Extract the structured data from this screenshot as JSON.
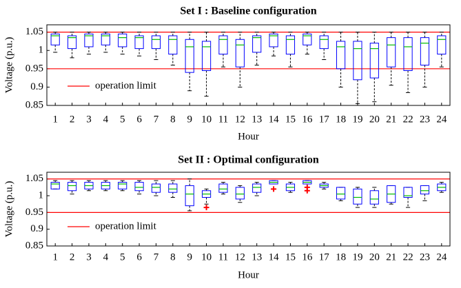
{
  "chart_data": [
    {
      "type": "box",
      "title": "Set I : Baseline configuration",
      "xlabel": "Hour",
      "ylabel": "Voltage (p.u.)",
      "categories": [
        "1",
        "2",
        "3",
        "4",
        "5",
        "6",
        "7",
        "8",
        "9",
        "10",
        "11",
        "12",
        "13",
        "14",
        "15",
        "16",
        "17",
        "18",
        "19",
        "20",
        "21",
        "22",
        "23",
        "24"
      ],
      "boxes": [
        {
          "whisker_low": 0.995,
          "q1": 1.015,
          "median": 1.04,
          "q3": 1.045,
          "whisker_high": 1.05
        },
        {
          "whisker_low": 0.98,
          "q1": 1.005,
          "median": 1.035,
          "q3": 1.04,
          "whisker_high": 1.05
        },
        {
          "whisker_low": 0.99,
          "q1": 1.01,
          "median": 1.04,
          "q3": 1.045,
          "whisker_high": 1.05
        },
        {
          "whisker_low": 0.995,
          "q1": 1.015,
          "median": 1.04,
          "q3": 1.045,
          "whisker_high": 1.05
        },
        {
          "whisker_low": 0.99,
          "q1": 1.01,
          "median": 1.035,
          "q3": 1.045,
          "whisker_high": 1.05
        },
        {
          "whisker_low": 0.985,
          "q1": 1.005,
          "median": 1.035,
          "q3": 1.04,
          "whisker_high": 1.05
        },
        {
          "whisker_low": 0.975,
          "q1": 1.005,
          "median": 1.03,
          "q3": 1.04,
          "whisker_high": 1.05
        },
        {
          "whisker_low": 0.96,
          "q1": 0.99,
          "median": 1.03,
          "q3": 1.04,
          "whisker_high": 1.05
        },
        {
          "whisker_low": 0.89,
          "q1": 0.94,
          "median": 1.01,
          "q3": 1.03,
          "whisker_high": 1.05
        },
        {
          "whisker_low": 0.875,
          "q1": 0.945,
          "median": 1.01,
          "q3": 1.025,
          "whisker_high": 1.05
        },
        {
          "whisker_low": 0.955,
          "q1": 0.99,
          "median": 1.03,
          "q3": 1.04,
          "whisker_high": 1.05
        },
        {
          "whisker_low": 0.9,
          "q1": 0.955,
          "median": 1.015,
          "q3": 1.03,
          "whisker_high": 1.05
        },
        {
          "whisker_low": 0.96,
          "q1": 0.995,
          "median": 1.035,
          "q3": 1.04,
          "whisker_high": 1.05
        },
        {
          "whisker_low": 0.985,
          "q1": 1.01,
          "median": 1.04,
          "q3": 1.045,
          "whisker_high": 1.05
        },
        {
          "whisker_low": 0.955,
          "q1": 0.99,
          "median": 1.03,
          "q3": 1.04,
          "whisker_high": 1.05
        },
        {
          "whisker_low": 0.99,
          "q1": 1.015,
          "median": 1.04,
          "q3": 1.045,
          "whisker_high": 1.05
        },
        {
          "whisker_low": 0.975,
          "q1": 1.005,
          "median": 1.03,
          "q3": 1.04,
          "whisker_high": 1.05
        },
        {
          "whisker_low": 0.9,
          "q1": 0.95,
          "median": 1.01,
          "q3": 1.025,
          "whisker_high": 1.05
        },
        {
          "whisker_low": 0.855,
          "q1": 0.92,
          "median": 1.005,
          "q3": 1.025,
          "whisker_high": 1.05
        },
        {
          "whisker_low": 0.86,
          "q1": 0.925,
          "median": 1.005,
          "q3": 1.02,
          "whisker_high": 1.05
        },
        {
          "whisker_low": 0.905,
          "q1": 0.955,
          "median": 1.015,
          "q3": 1.035,
          "whisker_high": 1.05
        },
        {
          "whisker_low": 0.885,
          "q1": 0.945,
          "median": 1.01,
          "q3": 1.035,
          "whisker_high": 1.05
        },
        {
          "whisker_low": 0.9,
          "q1": 0.96,
          "median": 1.02,
          "q3": 1.035,
          "whisker_high": 1.05
        },
        {
          "whisker_low": 0.955,
          "q1": 0.99,
          "median": 1.03,
          "q3": 1.04,
          "whisker_high": 1.05
        }
      ],
      "hlines": [
        1.05,
        0.95
      ],
      "hline_label": "operation limit",
      "hline_color": "#ff0000",
      "box_color": "#0000ff",
      "median_color": "#00bb00",
      "whisker_color": "#000000",
      "outlier_color": "#ff0000",
      "ylim": [
        0.85,
        1.07
      ],
      "yticks": [
        1.05,
        1,
        0.95,
        0.9,
        0.85
      ],
      "legend": "lower left"
    },
    {
      "type": "box",
      "title": "Set II : Optimal configuration",
      "xlabel": "Hour",
      "ylabel": "Voltage (p.u.)",
      "categories": [
        "1",
        "2",
        "3",
        "4",
        "5",
        "6",
        "7",
        "8",
        "9",
        "10",
        "11",
        "12",
        "13",
        "14",
        "15",
        "16",
        "17",
        "18",
        "19",
        "20",
        "21",
        "22",
        "23",
        "24"
      ],
      "boxes": [
        {
          "whisker_low": 1.02,
          "q1": 1.02,
          "median": 1.035,
          "q3": 1.04,
          "whisker_high": 1.045
        },
        {
          "whisker_low": 1.005,
          "q1": 1.015,
          "median": 1.03,
          "q3": 1.04,
          "whisker_high": 1.045
        },
        {
          "whisker_low": 1.015,
          "q1": 1.02,
          "median": 1.03,
          "q3": 1.04,
          "whisker_high": 1.045
        },
        {
          "whisker_low": 1.015,
          "q1": 1.02,
          "median": 1.03,
          "q3": 1.04,
          "whisker_high": 1.045
        },
        {
          "whisker_low": 1.015,
          "q1": 1.02,
          "median": 1.035,
          "q3": 1.04,
          "whisker_high": 1.045
        },
        {
          "whisker_low": 1.005,
          "q1": 1.015,
          "median": 1.025,
          "q3": 1.04,
          "whisker_high": 1.045
        },
        {
          "whisker_low": 1.0,
          "q1": 1.01,
          "median": 1.025,
          "q3": 1.035,
          "whisker_high": 1.045
        },
        {
          "whisker_low": 0.995,
          "q1": 1.01,
          "median": 1.02,
          "q3": 1.035,
          "whisker_high": 1.045
        },
        {
          "whisker_low": 0.955,
          "q1": 0.97,
          "median": 1.005,
          "q3": 1.03,
          "whisker_high": 1.05
        },
        {
          "whisker_low": 0.975,
          "q1": 0.995,
          "median": 1.005,
          "q3": 1.015,
          "whisker_high": 1.02,
          "outliers": [
            0.965
          ]
        },
        {
          "whisker_low": 1.005,
          "q1": 1.01,
          "median": 1.02,
          "q3": 1.035,
          "whisker_high": 1.04
        },
        {
          "whisker_low": 0.98,
          "q1": 0.99,
          "median": 1.005,
          "q3": 1.025,
          "whisker_high": 1.03
        },
        {
          "whisker_low": 1.0,
          "q1": 1.01,
          "median": 1.025,
          "q3": 1.035,
          "whisker_high": 1.04
        },
        {
          "whisker_low": 1.035,
          "q1": 1.035,
          "median": 1.04,
          "q3": 1.045,
          "whisker_high": 1.045,
          "outliers": [
            1.02
          ]
        },
        {
          "whisker_low": 1.01,
          "q1": 1.015,
          "median": 1.025,
          "q3": 1.035,
          "whisker_high": 1.04
        },
        {
          "whisker_low": 1.035,
          "q1": 1.035,
          "median": 1.04,
          "q3": 1.045,
          "whisker_high": 1.045,
          "outliers": [
            1.025,
            1.015
          ]
        },
        {
          "whisker_low": 1.02,
          "q1": 1.025,
          "median": 1.03,
          "q3": 1.035,
          "whisker_high": 1.04
        },
        {
          "whisker_low": 0.985,
          "q1": 0.99,
          "median": 1.005,
          "q3": 1.025,
          "whisker_high": 1.025
        },
        {
          "whisker_low": 0.965,
          "q1": 0.975,
          "median": 0.995,
          "q3": 1.02,
          "whisker_high": 1.025
        },
        {
          "whisker_low": 0.965,
          "q1": 0.975,
          "median": 0.99,
          "q3": 1.015,
          "whisker_high": 1.025
        },
        {
          "whisker_low": 0.975,
          "q1": 0.98,
          "median": 1.005,
          "q3": 1.03,
          "whisker_high": 1.03
        },
        {
          "whisker_low": 0.965,
          "q1": 0.995,
          "median": 1.0,
          "q3": 1.025,
          "whisker_high": 1.025
        },
        {
          "whisker_low": 0.985,
          "q1": 1.005,
          "median": 1.015,
          "q3": 1.03,
          "whisker_high": 1.03
        },
        {
          "whisker_low": 1.01,
          "q1": 1.015,
          "median": 1.025,
          "q3": 1.035,
          "whisker_high": 1.04
        }
      ],
      "hlines": [
        1.05,
        0.95
      ],
      "hline_label": "operation limit",
      "hline_color": "#ff0000",
      "box_color": "#0000ff",
      "median_color": "#00bb00",
      "whisker_color": "#000000",
      "outlier_color": "#ff0000",
      "ylim": [
        0.85,
        1.07
      ],
      "yticks": [
        1.05,
        1,
        0.95,
        0.9,
        0.85
      ],
      "legend": "lower left"
    }
  ]
}
